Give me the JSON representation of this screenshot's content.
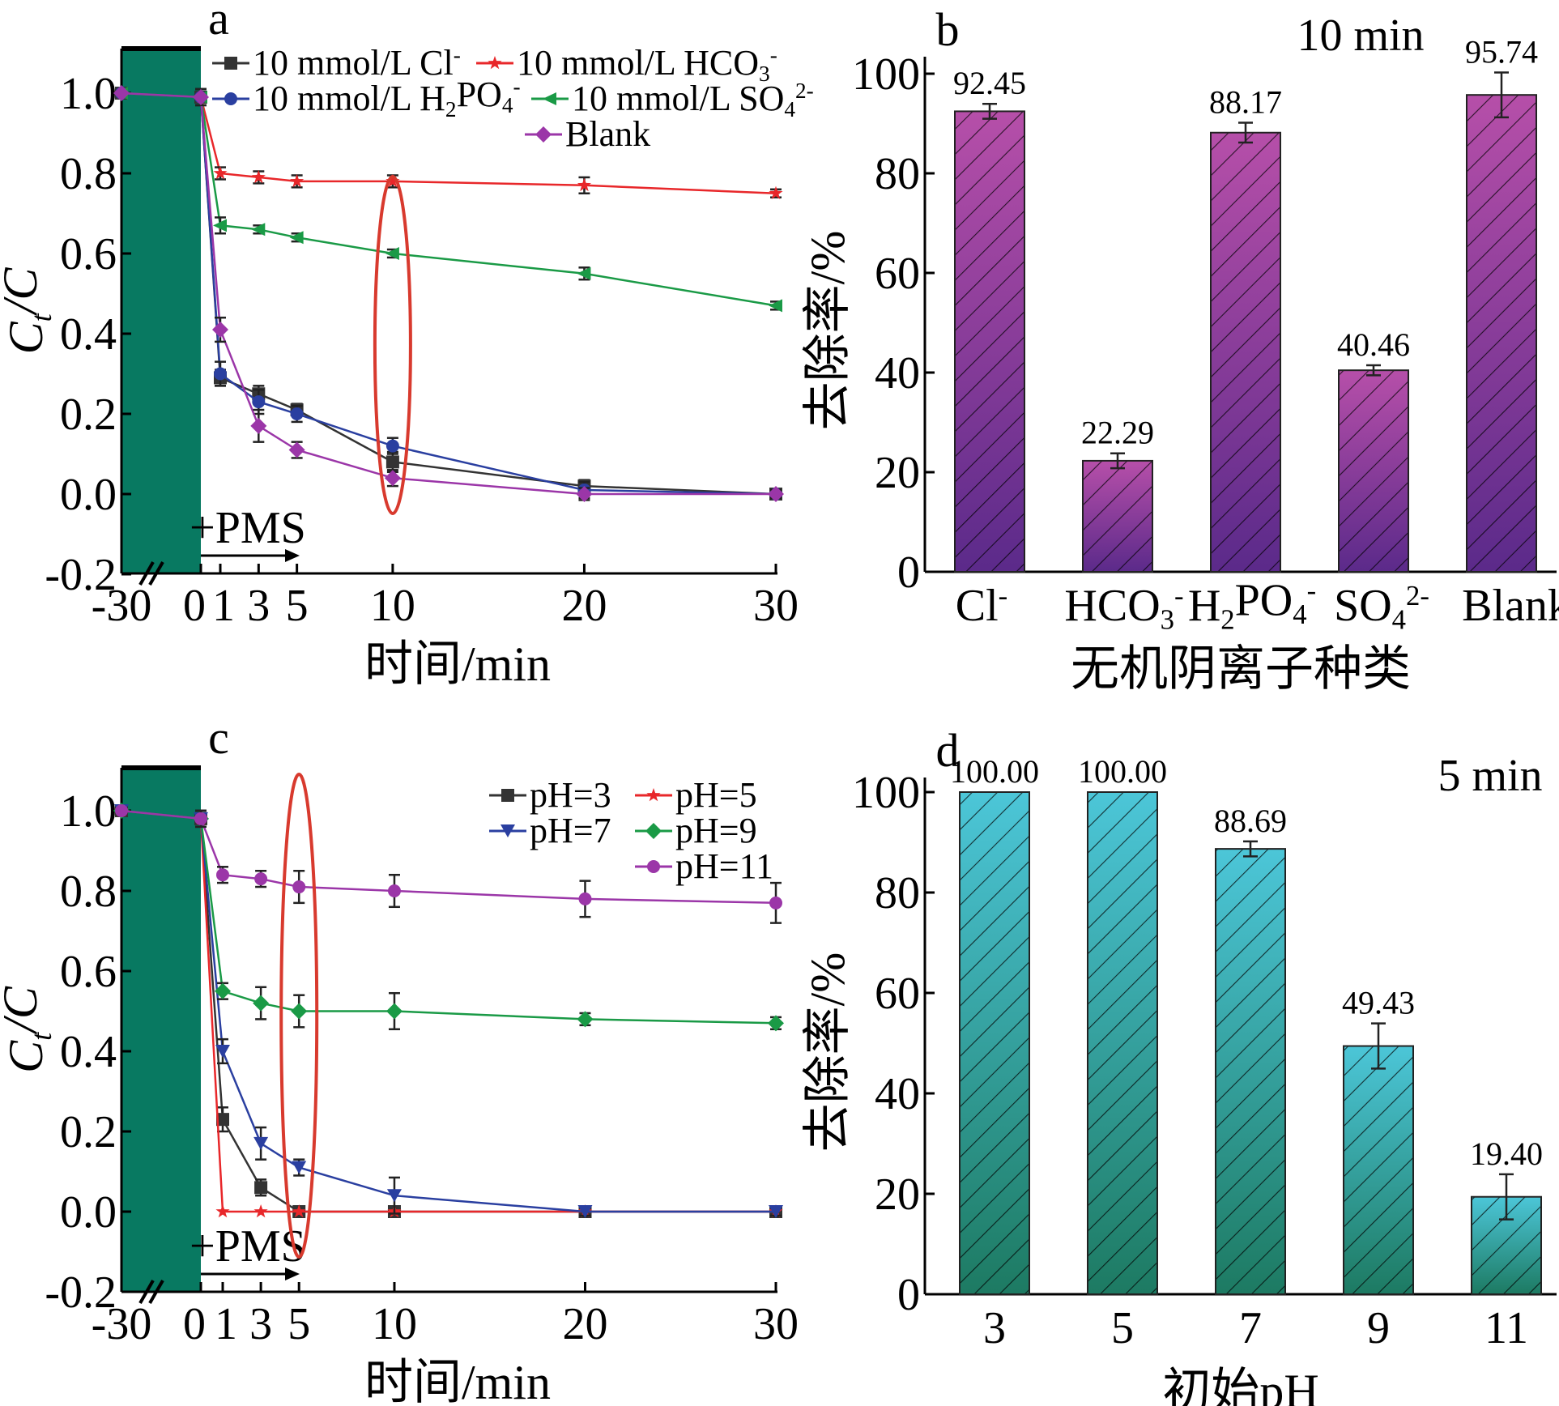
{
  "chart_data": [
    {
      "id": "a",
      "type": "line",
      "panel_label": "a",
      "xlabel": "时间/min",
      "ylabel_main": "C",
      "ylabel_sub": "t",
      "ylabel_tail": "/C",
      "x_ticks": [
        "-30",
        "0",
        "1",
        "3",
        "5",
        "10",
        "20",
        "30"
      ],
      "y_ticks": [
        "-0.2",
        "0.0",
        "0.2",
        "0.4",
        "0.6",
        "0.8",
        "1.0"
      ],
      "ylim": [
        -0.2,
        1.05
      ],
      "annotation": "+PMS",
      "highlight_x": 10,
      "legend": [
        {
          "main": "10 mmol/L Cl",
          "sup": "-"
        },
        {
          "main": "10 mmol/L HCO",
          "sub": "3",
          "sup": "-"
        },
        {
          "main": "10 mmol/L H",
          "sub": "2",
          "main2": "PO",
          "sub2": "4",
          "sup": "-"
        },
        {
          "main": "10 mmol/L SO",
          "sub": "4",
          "sup": "2-"
        },
        {
          "main": "Blank"
        }
      ],
      "x": [
        -30,
        0,
        1,
        3,
        5,
        10,
        20,
        30
      ],
      "series": [
        {
          "name": "10 mmol/L Cl-",
          "color": "#333333",
          "marker": "square",
          "values": [
            1.0,
            0.99,
            0.29,
            0.25,
            0.21,
            0.08,
            0.02,
            0.0
          ],
          "err": [
            0,
            0.02,
            0.02,
            0.02,
            0.015,
            0.025,
            0.015,
            0.01
          ]
        },
        {
          "name": "10 mmol/L HCO3-",
          "color": "#e8272a",
          "marker": "star",
          "values": [
            1.0,
            0.99,
            0.8,
            0.79,
            0.78,
            0.78,
            0.77,
            0.75
          ],
          "err": [
            0,
            0.02,
            0.015,
            0.015,
            0.015,
            0.015,
            0.02,
            0.01
          ]
        },
        {
          "name": "10 mmol/L H2PO4-",
          "color": "#2a3fa0",
          "marker": "circle",
          "values": [
            1.0,
            0.99,
            0.3,
            0.23,
            0.2,
            0.12,
            0.01,
            0.0
          ],
          "err": [
            0,
            0.02,
            0.03,
            0.03,
            0.02,
            0.02,
            0.02,
            0.01
          ]
        },
        {
          "name": "10 mmol/L SO42-",
          "color": "#1a9a46",
          "marker": "triangle-left",
          "values": [
            1.0,
            0.99,
            0.67,
            0.66,
            0.64,
            0.6,
            0.55,
            0.47
          ],
          "err": [
            0,
            0.02,
            0.02,
            0.01,
            0.01,
            0.01,
            0.015,
            0.01
          ]
        },
        {
          "name": "Blank",
          "color": "#9b36a8",
          "marker": "diamond",
          "values": [
            1.0,
            0.99,
            0.41,
            0.17,
            0.11,
            0.04,
            0.0,
            0.0
          ],
          "err": [
            0,
            0.02,
            0.03,
            0.04,
            0.02,
            0.02,
            0.015,
            0.01
          ]
        }
      ]
    },
    {
      "id": "b",
      "type": "bar",
      "panel_label": "b",
      "title": "10 min",
      "xlabel": "无机阴离子种类",
      "ylabel": "去除率/%",
      "y_ticks": [
        "0",
        "20",
        "40",
        "60",
        "80",
        "100"
      ],
      "ylim": [
        0,
        100
      ],
      "categories": [
        {
          "main": "Cl",
          "sup": "-"
        },
        {
          "main": "HCO",
          "sub": "3",
          "sup": "-"
        },
        {
          "main": "H",
          "sub": "2",
          "main2": "PO",
          "sub2": "4",
          "sup": "-"
        },
        {
          "main": "SO",
          "sub": "4",
          "sup": "2-"
        },
        {
          "main": "Blank"
        }
      ],
      "values": [
        92.45,
        22.29,
        88.17,
        40.46,
        95.74
      ],
      "labels": [
        "92.45",
        "22.29",
        "88.17",
        "40.46",
        "95.74"
      ],
      "err": [
        1.5,
        1.5,
        2.0,
        1.0,
        4.5
      ],
      "colors": [
        "#b64fa9",
        "#5b2a8a"
      ]
    },
    {
      "id": "c",
      "type": "line",
      "panel_label": "c",
      "xlabel": "时间/min",
      "ylabel_main": "C",
      "ylabel_sub": "t",
      "ylabel_tail": "/C",
      "x_ticks": [
        "-30",
        "0",
        "1",
        "3",
        "5",
        "10",
        "20",
        "30"
      ],
      "y_ticks": [
        "-0.2",
        "0.0",
        "0.2",
        "0.4",
        "0.6",
        "0.8",
        "1.0"
      ],
      "ylim": [
        -0.2,
        1.05
      ],
      "annotation": "+PMS",
      "highlight_x": 5,
      "legend": [
        {
          "main": "pH=3"
        },
        {
          "main": "pH=5"
        },
        {
          "main": "pH=7"
        },
        {
          "main": "pH=9"
        },
        {
          "main": "pH=11"
        }
      ],
      "x": [
        -30,
        0,
        1,
        3,
        5,
        10,
        20,
        30
      ],
      "series": [
        {
          "name": "pH=3",
          "color": "#333333",
          "marker": "square",
          "values": [
            1.0,
            0.98,
            0.23,
            0.06,
            0.0,
            0.0,
            0.0,
            0.0
          ],
          "err": [
            0,
            0.02,
            0.03,
            0.02,
            0.01,
            0.01,
            0.01,
            0.01
          ]
        },
        {
          "name": "pH=5",
          "color": "#e8272a",
          "marker": "star",
          "values": [
            1.0,
            0.98,
            0.0,
            0.0,
            0.0,
            0.0,
            0.0,
            0.0
          ],
          "err": [
            0,
            0.02,
            0,
            0,
            0,
            0,
            0,
            0
          ]
        },
        {
          "name": "pH=7",
          "color": "#2a3fa0",
          "marker": "triangle-down",
          "values": [
            1.0,
            0.98,
            0.4,
            0.17,
            0.11,
            0.04,
            0.0,
            0.0
          ],
          "err": [
            0,
            0.02,
            0.03,
            0.04,
            0.02,
            0.045,
            0.01,
            0.01
          ]
        },
        {
          "name": "pH=9",
          "color": "#1a9a46",
          "marker": "diamond",
          "values": [
            1.0,
            0.98,
            0.55,
            0.52,
            0.5,
            0.5,
            0.48,
            0.47
          ],
          "err": [
            0,
            0.02,
            0.02,
            0.04,
            0.04,
            0.045,
            0.015,
            0.015
          ]
        },
        {
          "name": "pH=11",
          "color": "#9b36a8",
          "marker": "circle",
          "values": [
            1.0,
            0.98,
            0.84,
            0.83,
            0.81,
            0.8,
            0.78,
            0.77
          ],
          "err": [
            0,
            0.02,
            0.02,
            0.02,
            0.04,
            0.04,
            0.045,
            0.05
          ]
        }
      ]
    },
    {
      "id": "d",
      "type": "bar",
      "panel_label": "d",
      "title": "5 min",
      "xlabel": "初始pH",
      "ylabel": "去除率/%",
      "y_ticks": [
        "0",
        "20",
        "40",
        "60",
        "80",
        "100"
      ],
      "ylim": [
        0,
        100
      ],
      "categories": [
        {
          "main": "3"
        },
        {
          "main": "5"
        },
        {
          "main": "7"
        },
        {
          "main": "9"
        },
        {
          "main": "11"
        }
      ],
      "values": [
        100.0,
        100.0,
        88.69,
        49.43,
        19.4
      ],
      "labels": [
        "100.00",
        "100.00",
        "88.69",
        "49.43",
        "19.40"
      ],
      "err": [
        0,
        0,
        1.5,
        4.5,
        4.5
      ],
      "colors": [
        "#4cc6d8",
        "#1d7a62"
      ]
    }
  ],
  "colors": {
    "pre_period_block": "#087961",
    "highlight_ellipse": "#d83a2e"
  }
}
